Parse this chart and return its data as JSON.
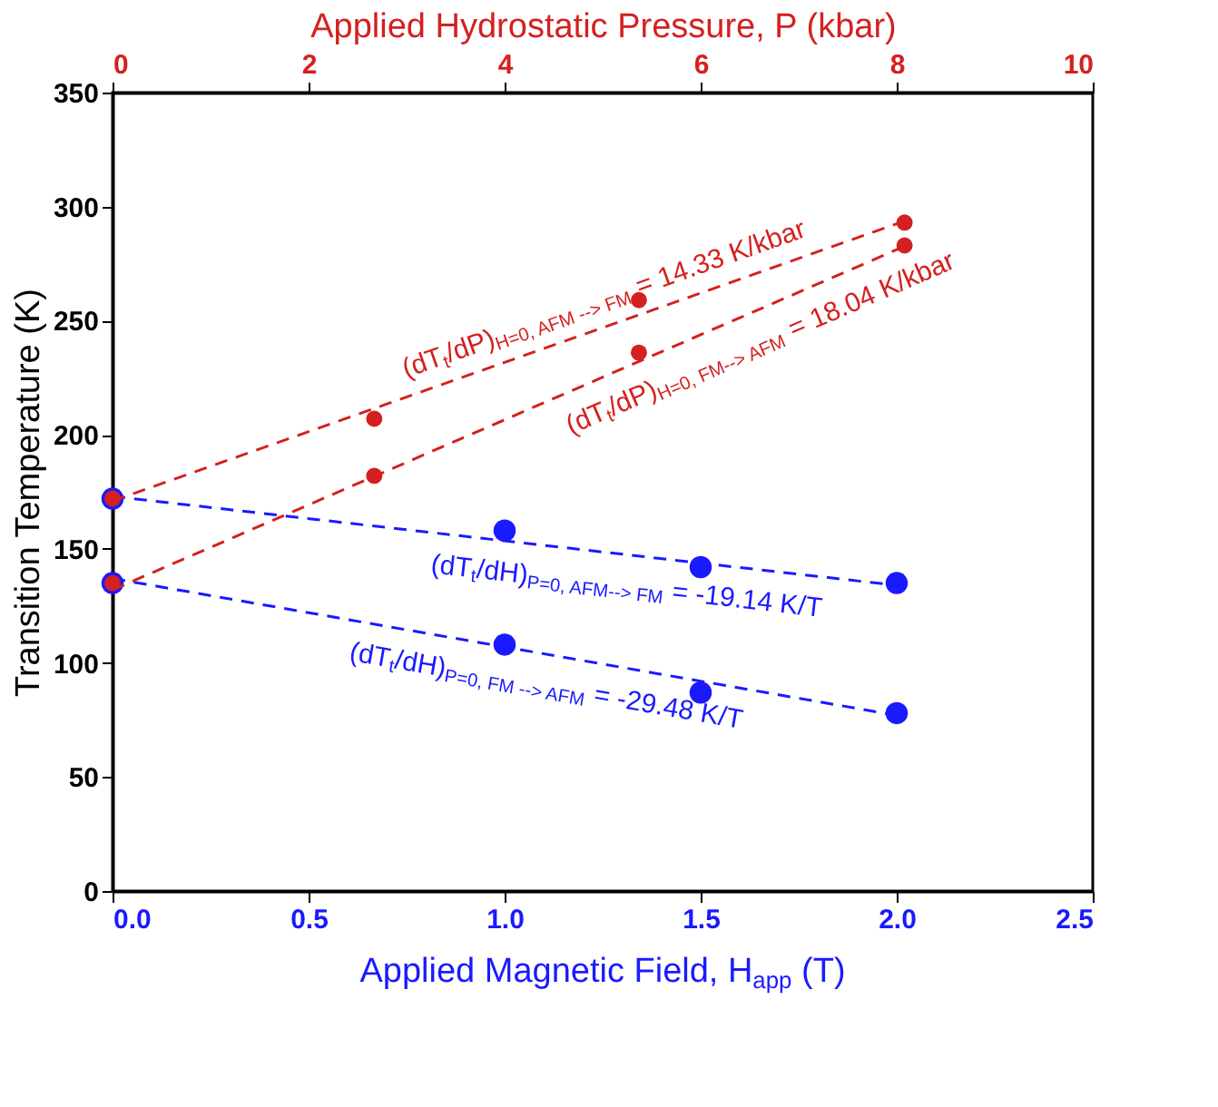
{
  "chart_data": {
    "type": "scatter",
    "xlabel": "Applied Magnetic Field, H$_{app}$ (T)",
    "ylabel": "Transition Temperature (K)",
    "x2label": "Applied Hydrostatic Pressure, P (kbar)",
    "xlim": [
      0,
      2.5
    ],
    "xticks": [
      {
        "value": 0,
        "label": "0.0"
      },
      {
        "value": 0.5,
        "label": "0.5"
      },
      {
        "value": 1,
        "label": "1.0"
      },
      {
        "value": 1.5,
        "label": "1.5"
      },
      {
        "value": 2,
        "label": "2.0"
      },
      {
        "value": 2.5,
        "label": "2.5"
      }
    ],
    "x2lim": [
      0,
      10
    ],
    "x2ticks": [
      0,
      2,
      4,
      6,
      8,
      10
    ],
    "ylim": [
      0,
      350
    ],
    "yticks": [
      0,
      50,
      100,
      150,
      200,
      250,
      300,
      350
    ],
    "grid": false,
    "marker": "circle",
    "series": [
      {
        "axis": "x2",
        "color": "#d42020",
        "x": [
          0,
          2.67,
          5.37,
          8.08
        ],
        "values": [
          172,
          207,
          259,
          293
        ]
      },
      {
        "axis": "x2",
        "color": "#d42020",
        "x": [
          0,
          2.67,
          5.37,
          8.08
        ],
        "values": [
          135,
          182,
          236,
          283
        ]
      },
      {
        "color": "#1a1aff",
        "x": [
          0,
          1,
          1.5,
          2
        ],
        "values": [
          172,
          158,
          142,
          135
        ]
      },
      {
        "color": "#1a1aff",
        "x": [
          0,
          1,
          1.5,
          2
        ],
        "values": [
          135,
          108,
          87,
          78
        ]
      },
      {
        "type": "line",
        "axis": "x2",
        "color": "#d42020",
        "line_style": "dashed",
        "marker": "none",
        "x": [
          0,
          8.1
        ],
        "values": [
          171,
          294
        ]
      },
      {
        "type": "line",
        "axis": "x2",
        "color": "#d42020",
        "line_style": "dashed",
        "marker": "none",
        "x": [
          0,
          8.1
        ],
        "values": [
          132,
          283
        ]
      },
      {
        "type": "line",
        "color": "#1a1aff",
        "line_style": "dashed",
        "marker": "none",
        "x": [
          0,
          2
        ],
        "values": [
          173,
          134
        ]
      },
      {
        "type": "line",
        "color": "#1a1aff",
        "line_style": "dashed",
        "marker": "none",
        "x": [
          0,
          2
        ],
        "values": [
          137,
          77
        ]
      }
    ],
    "annotations": [
      "(dT$_{t}$/dP)$_{H=0, AFM --> FM}$ = 14.33 K/kbar",
      "(dT$_{t}$/dP)$_{H=0, FM--> AFM}$ = 18.04 K/kbar",
      "(dT$_{t}$/dH)$_{P=0, AFM--> FM}$ = -19.14 K/T",
      "(dT$_{t}$/dH)$_{P=0, FM --> AFM}$ = -29.48 K/T"
    ]
  }
}
